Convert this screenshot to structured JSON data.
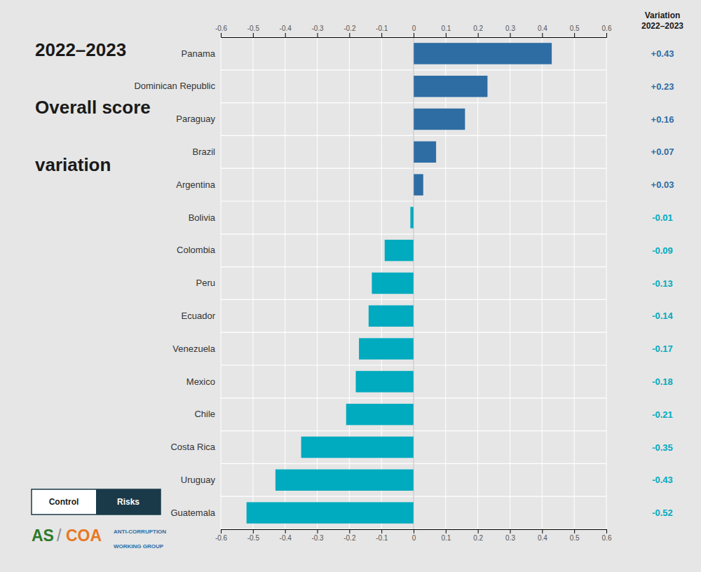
{
  "chart_data": {
    "type": "bar",
    "orientation": "horizontal",
    "title": "2022–2023\nOverall score\nvariation",
    "categories": [
      "Panama",
      "Dominican Republic",
      "Paraguay",
      "Brazil",
      "Argentina",
      "Bolivia",
      "Colombia",
      "Peru",
      "Ecuador",
      "Venezuela",
      "Mexico",
      "Chile",
      "Costa Rica",
      "Uruguay",
      "Guatemala"
    ],
    "values": [
      0.43,
      0.23,
      0.16,
      0.07,
      0.03,
      -0.01,
      -0.09,
      -0.13,
      -0.14,
      -0.17,
      -0.18,
      -0.21,
      -0.35,
      -0.43,
      -0.52
    ],
    "value_labels": [
      "+0.43",
      "+0.23",
      "+0.16",
      "+0.07",
      "+0.03",
      "-0.01",
      "-0.09",
      "-0.13",
      "-0.14",
      "-0.17",
      "-0.18",
      "-0.21",
      "-0.35",
      "-0.43",
      "-0.52"
    ],
    "data_labels": true,
    "colors": [
      "#2E6DA4",
      "#2E6DA4",
      "#2E6DA4",
      "#2E6DA4",
      "#2E6DA4",
      "#00AABF",
      "#00AABF",
      "#00AABF",
      "#00AABF",
      "#00AABF",
      "#00AABF",
      "#00AABF",
      "#00AABF",
      "#00AABF",
      "#00AABF"
    ],
    "xlim": [
      -0.6,
      0.6
    ],
    "xticks": [
      -0.6,
      -0.5,
      -0.4,
      -0.3,
      -0.2,
      -0.1,
      0,
      0.1,
      0.2,
      0.3,
      0.4,
      0.5,
      0.6
    ],
    "grid": true,
    "annotations": [
      "Variation\n2022–2023",
      "Control",
      "Risks",
      "AS",
      "/",
      "COA",
      "ANTI-CORRUPTION",
      "WORKING GROUP"
    ]
  }
}
